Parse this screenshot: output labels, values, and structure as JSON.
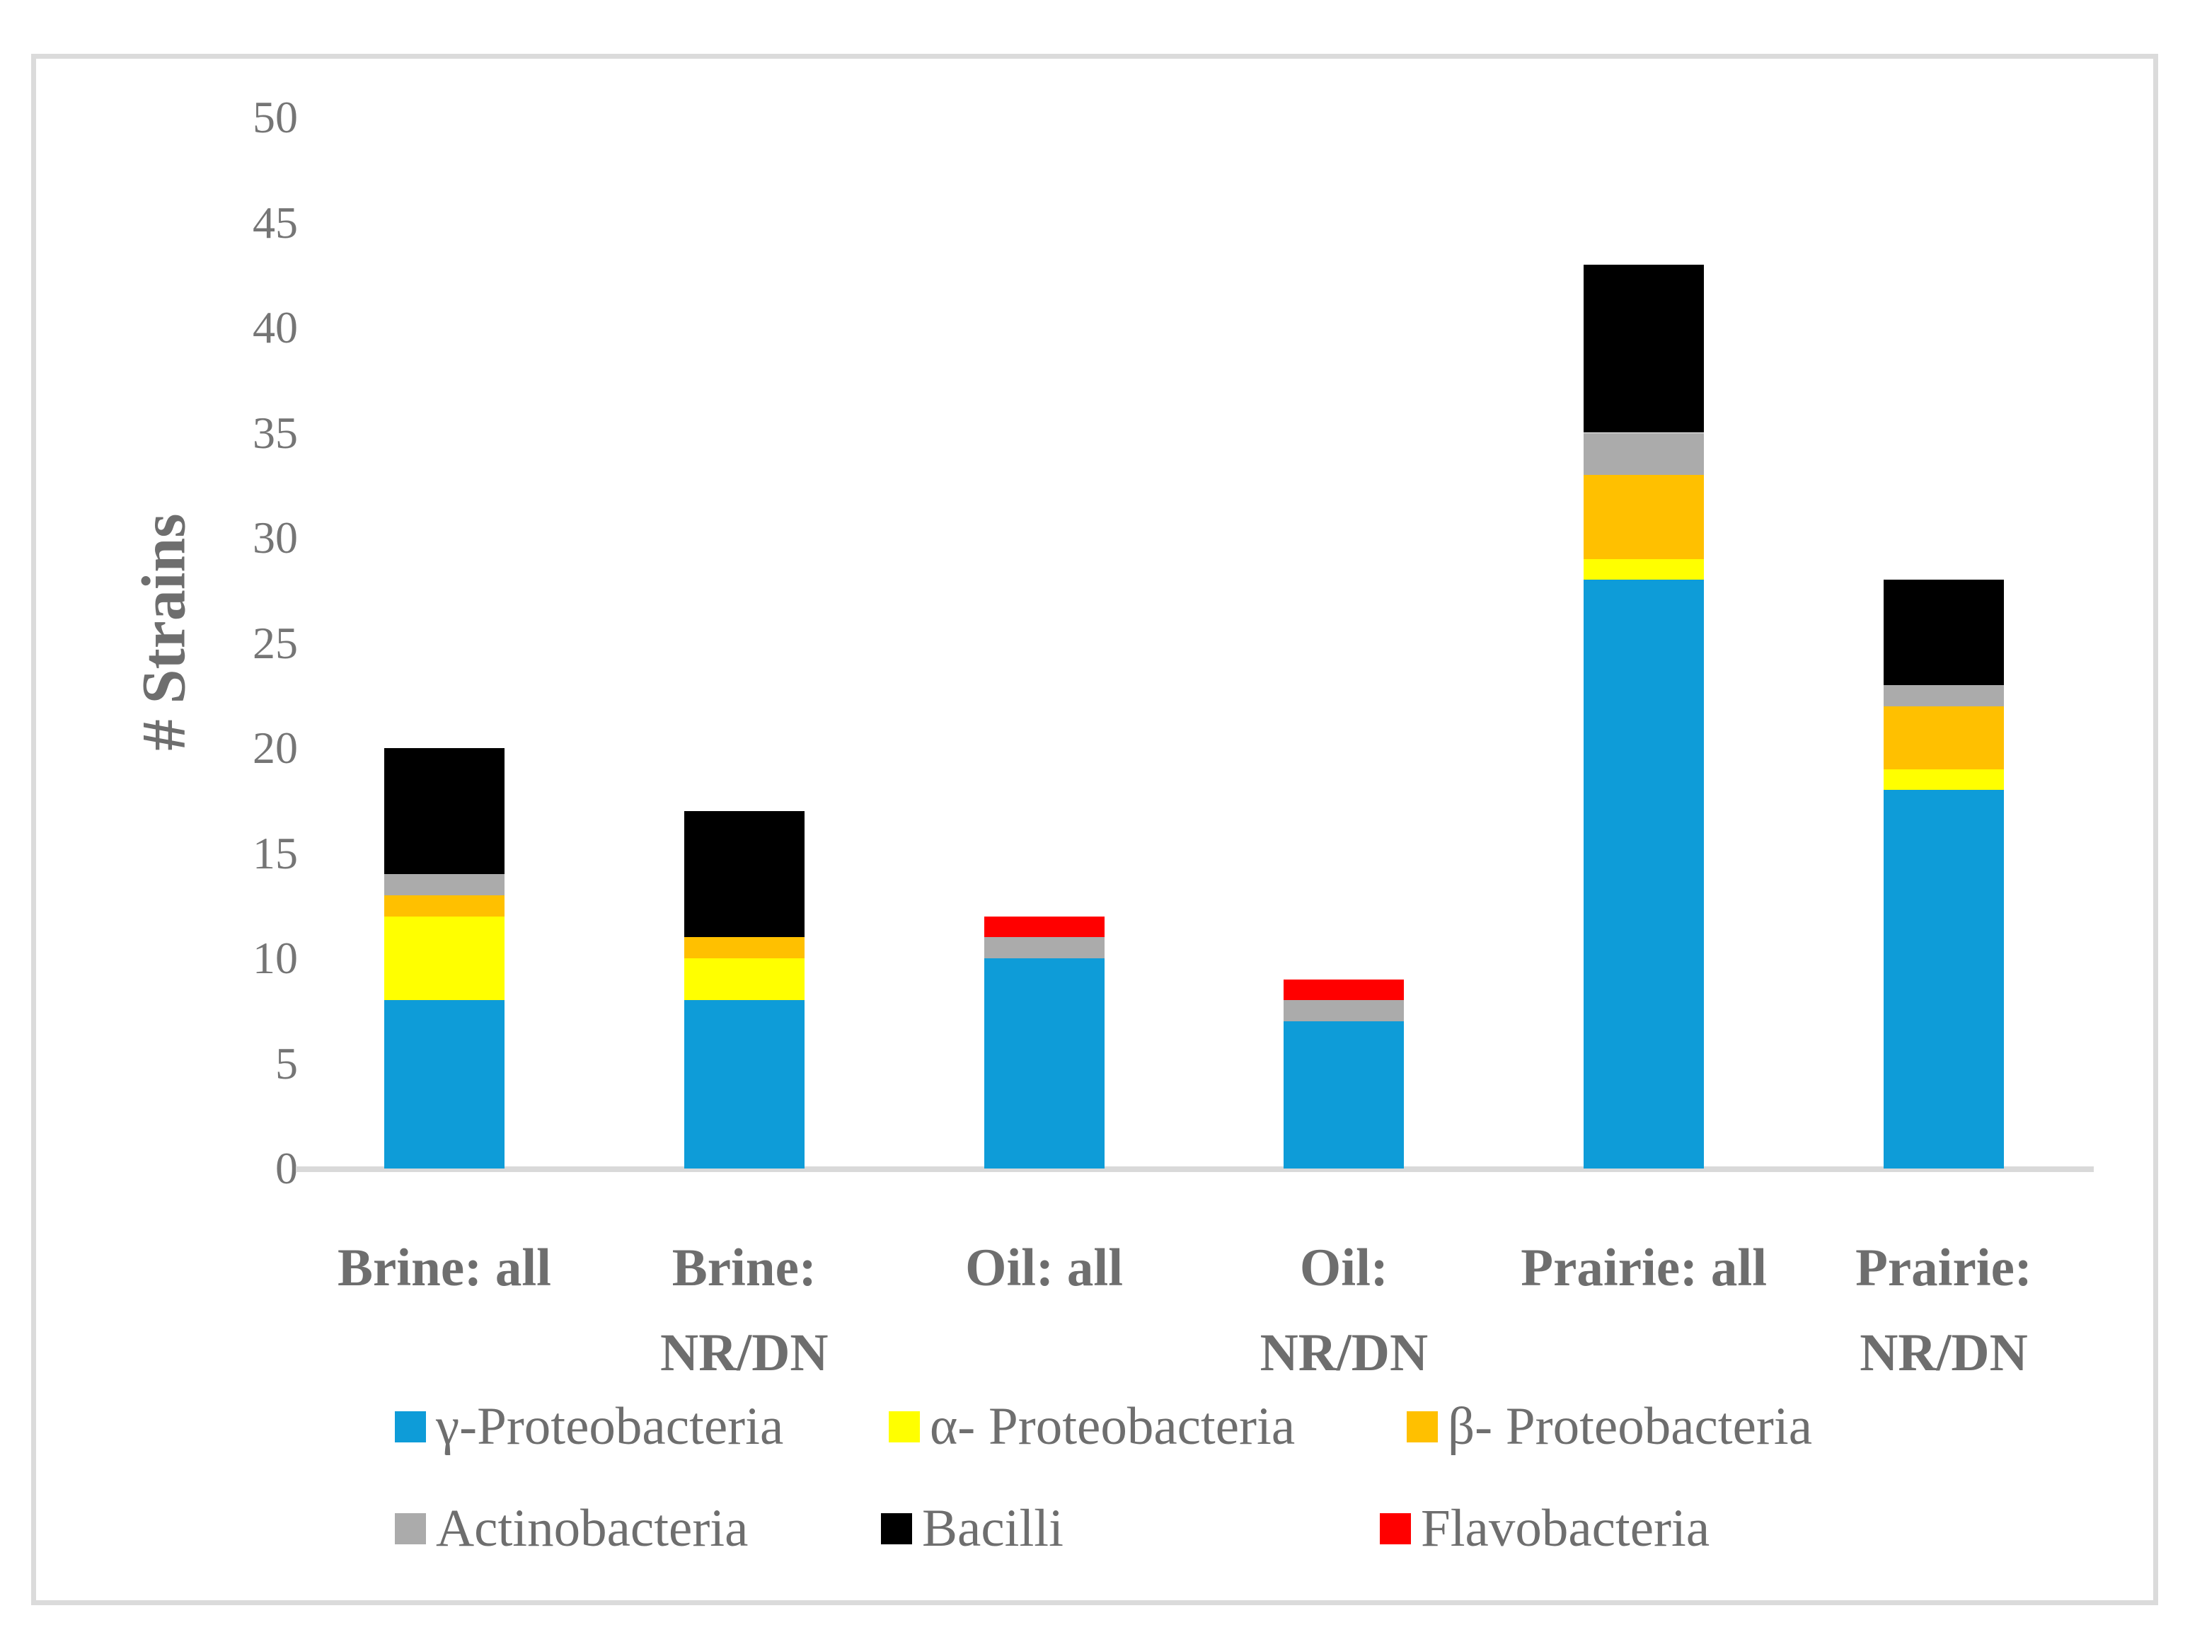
{
  "figure": {
    "y_axis_title": "# Strains",
    "categories": [
      {
        "lines": [
          "Brine: all"
        ]
      },
      {
        "lines": [
          "Brine:",
          "NR/DN"
        ]
      },
      {
        "lines": [
          "Oil: all"
        ]
      },
      {
        "lines": [
          "Oil:",
          "NR/DN"
        ]
      },
      {
        "lines": [
          "Prairie: all"
        ]
      },
      {
        "lines": [
          "Prairie:",
          "NR/DN"
        ]
      }
    ]
  },
  "chart_data": {
    "type": "bar",
    "stacked": true,
    "title": "",
    "xlabel": "",
    "ylabel": "# Strains",
    "ylim": [
      0,
      50
    ],
    "y_ticks": [
      0,
      5,
      10,
      15,
      20,
      25,
      30,
      35,
      40,
      45,
      50
    ],
    "grid": false,
    "legend_position": "bottom",
    "categories": [
      "Brine: all",
      "Brine: NR/DN",
      "Oil: all",
      "Oil: NR/DN",
      "Prairie: all",
      "Prairie: NR/DN"
    ],
    "series": [
      {
        "name": "γ-Proteobacteria",
        "color": "#0E9CD8",
        "values": [
          8,
          8,
          10,
          7,
          28,
          18
        ]
      },
      {
        "name": "α- Proteobacteria",
        "color": "#FFFF00",
        "values": [
          4,
          2,
          0,
          0,
          1,
          1
        ]
      },
      {
        "name": "β- Proteobacteria",
        "color": "#FFC000",
        "values": [
          1,
          1,
          0,
          0,
          4,
          3
        ]
      },
      {
        "name": "Actinobacteria",
        "color": "#ABABAB",
        "values": [
          1,
          0,
          1,
          1,
          2,
          1
        ]
      },
      {
        "name": "Bacilli",
        "color": "#000000",
        "values": [
          6,
          6,
          0,
          0,
          8,
          5
        ]
      },
      {
        "name": "Flavobacteria",
        "color": "#FF0000",
        "values": [
          0,
          0,
          1,
          1,
          0,
          0
        ]
      }
    ],
    "totals": [
      20,
      17,
      12,
      9,
      43,
      28
    ],
    "legend_rows": [
      [
        0,
        1,
        2
      ],
      [
        3,
        4,
        5
      ]
    ]
  },
  "style_colors": {
    "frame_border": "#DBDBDB",
    "axis_line": "#D9D9D9",
    "label_text": "#6E6E6E",
    "tick_text": "#757575"
  }
}
